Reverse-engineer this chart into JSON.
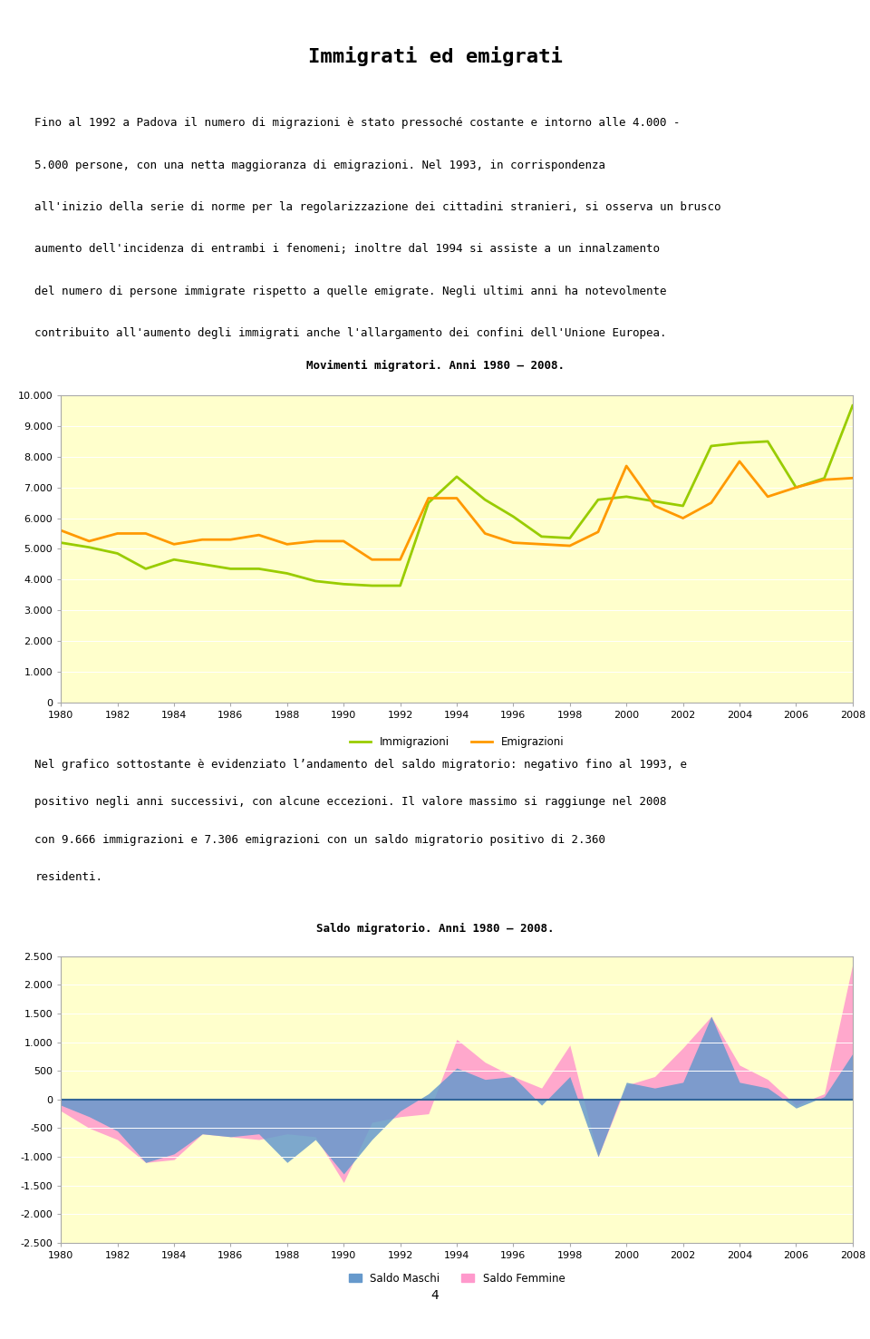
{
  "title": "Immigrati ed emigrati",
  "title_bg": "#ffffcc",
  "chart_bg": "#ffffcc",
  "page_bg": "#ffffff",
  "text1": "Fino al 1992 a Padova il numero di migrazioni è stato pressoché costante e intorno alle 4.000 -\n5.000 persone, con una netta maggioranza di emigrazioni. Nel 1993, in corrispondenza\nall'inizio della serie di norme per la regolarizzazione dei cittadini stranieri, si osserva un brusco\naumento dell'incidenza di entrambi i fenomeni; inoltre dal 1994 si assiste a un innalzamento\ndel numero di persone immigrate rispetto a quelle emigrate. Negli ultimi anni ha notevolmente\ncontribuito all'aumento degli immigrati anche l'allargamento dei confini dell'Unione Europea.",
  "chart1_title": "Movimenti migratori. Anni 1980 – 2008.",
  "years": [
    1980,
    1981,
    1982,
    1983,
    1984,
    1985,
    1986,
    1987,
    1988,
    1989,
    1990,
    1991,
    1992,
    1993,
    1994,
    1995,
    1996,
    1997,
    1998,
    1999,
    2000,
    2001,
    2002,
    2003,
    2004,
    2005,
    2006,
    2007,
    2008
  ],
  "immigrazioni": [
    5200,
    5050,
    4850,
    4350,
    4650,
    4500,
    4350,
    4350,
    4200,
    3950,
    3850,
    3800,
    3800,
    6500,
    7350,
    6600,
    6050,
    5400,
    5350,
    6600,
    6700,
    6550,
    6400,
    8350,
    8450,
    8500,
    7000,
    7300,
    9666
  ],
  "emigrazioni": [
    5600,
    5250,
    5500,
    5500,
    5150,
    5300,
    5300,
    5450,
    5150,
    5250,
    5250,
    4650,
    4650,
    6650,
    6650,
    5500,
    5200,
    5150,
    5100,
    5550,
    7700,
    6400,
    6000,
    6500,
    7850,
    6700,
    7000,
    7250,
    7306
  ],
  "immigrazioni_color": "#99cc00",
  "emigrazioni_color": "#ff9900",
  "chart1_ylim": [
    0,
    10000
  ],
  "chart1_yticks": [
    0,
    1000,
    2000,
    3000,
    4000,
    5000,
    6000,
    7000,
    8000,
    9000,
    10000
  ],
  "text2": "Nel grafico sottostante è evidenziato l’andamento del saldo migratorio: negativo fino al 1993, e\npositivo negli anni successivi, con alcune eccezioni. Il valore massimo si raggiunge nel 2008\ncon 9.666 immigrazioni e 7.306 emigrazioni con un saldo migratorio positivo di 2.360\nresidenti.",
  "chart2_title": "Saldo migratorio. Anni 1980 – 2008.",
  "saldo_maschi": [
    -100,
    -300,
    -550,
    -1100,
    -950,
    -600,
    -650,
    -600,
    -1100,
    -700,
    -1300,
    -700,
    -200,
    100,
    550,
    350,
    400,
    -100,
    400,
    -1000,
    300,
    200,
    300,
    1450,
    300,
    200,
    -150,
    50,
    800
  ],
  "saldo_femmine": [
    -200,
    -500,
    -700,
    -1100,
    -1050,
    -600,
    -650,
    -700,
    -600,
    -650,
    -1450,
    -400,
    -300,
    -250,
    1050,
    650,
    400,
    200,
    950,
    -1000,
    250,
    400,
    900,
    1450,
    600,
    350,
    -100,
    100,
    2360
  ],
  "maschi_color": "#6699cc",
  "femmine_color": "#ff99cc",
  "chart2_ylim": [
    -2500,
    2500
  ],
  "chart2_yticks": [
    -2500,
    -2000,
    -1500,
    -1000,
    -500,
    0,
    500,
    1000,
    1500,
    2000,
    2500
  ],
  "legend1_items": [
    "Immigrazioni",
    "Emigrazioni"
  ],
  "legend2_items": [
    "Saldo Maschi",
    "Saldo Femmine"
  ],
  "page_number": "4"
}
